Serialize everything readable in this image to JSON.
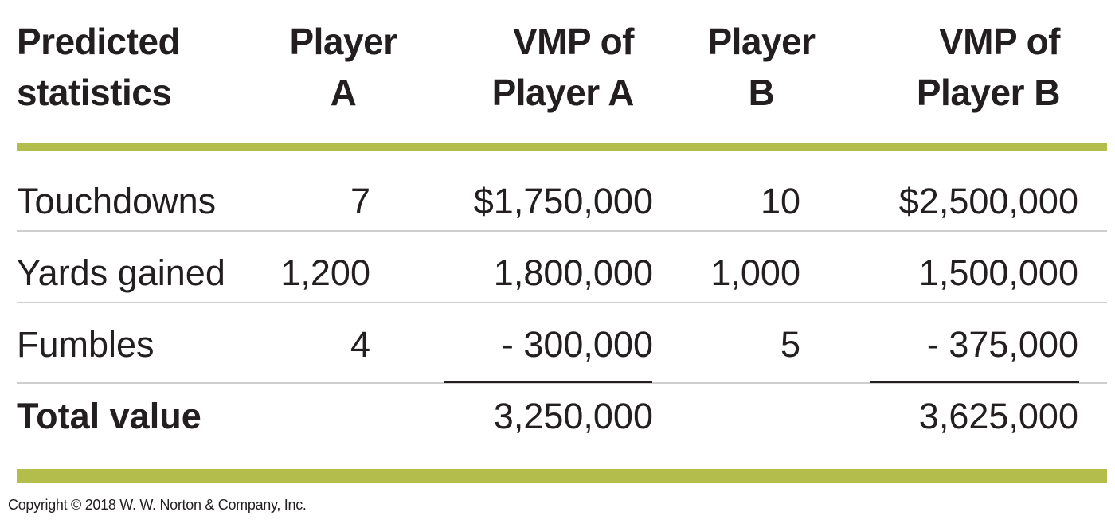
{
  "headers": {
    "stat": [
      "Predicted",
      "statistics"
    ],
    "player_a": [
      "Player",
      "A"
    ],
    "vmp_a": [
      "VMP of",
      "Player A"
    ],
    "player_b": [
      "Player",
      "B"
    ],
    "vmp_b": [
      "VMP of",
      "Player B"
    ]
  },
  "rows": [
    {
      "label": "Touchdowns",
      "player_a": "7",
      "vmp_a": "$1,750,000",
      "player_b": "10",
      "vmp_b": "$2,500,000"
    },
    {
      "label": "Yards gained",
      "player_a": "1,200",
      "vmp_a": "1,800,000",
      "player_b": "1,000",
      "vmp_b": "1,500,000"
    },
    {
      "label": "Fumbles",
      "player_a": "4",
      "vmp_a": "- 300,000",
      "player_b": "5",
      "vmp_b": "- 375,000"
    }
  ],
  "total": {
    "label": "Total value",
    "vmp_a": "3,250,000",
    "vmp_b": "3,625,000"
  },
  "copyright": "Copyright © 2018 W. W. Norton & Company, Inc.",
  "colors": {
    "accent_rule": "#b2bd4c",
    "divider": "#cfcfcf",
    "text": "#231f20"
  }
}
